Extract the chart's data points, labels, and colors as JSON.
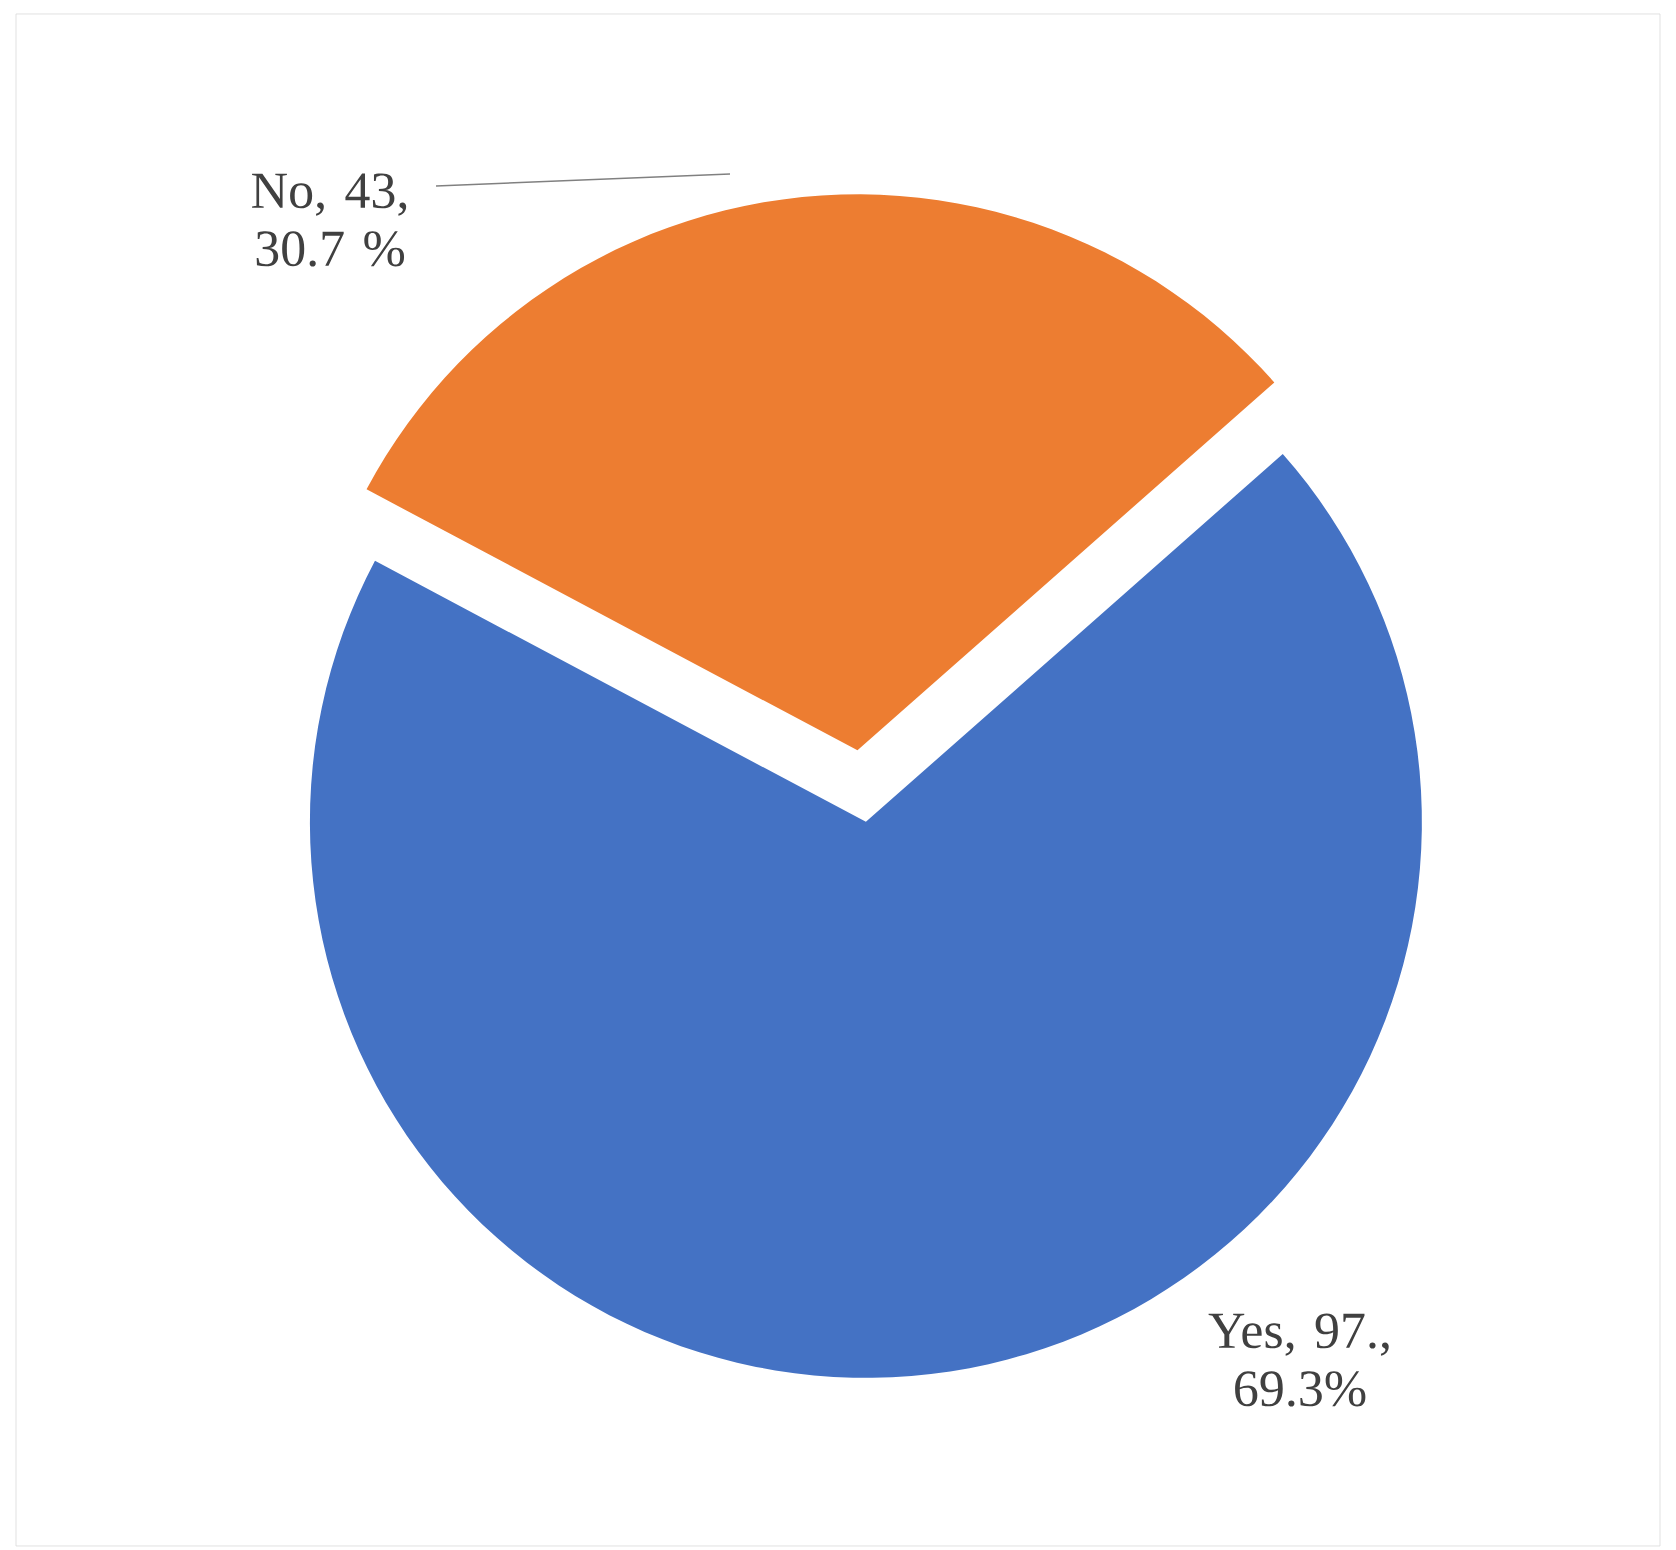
{
  "chart_data": {
    "type": "pie",
    "categories": [
      "Yes, 97., 69.3%",
      "No, 43, 30.7 %"
    ],
    "values": [
      97,
      43
    ],
    "colors": [
      "#4472c4",
      "#ed7d31"
    ]
  }
}
